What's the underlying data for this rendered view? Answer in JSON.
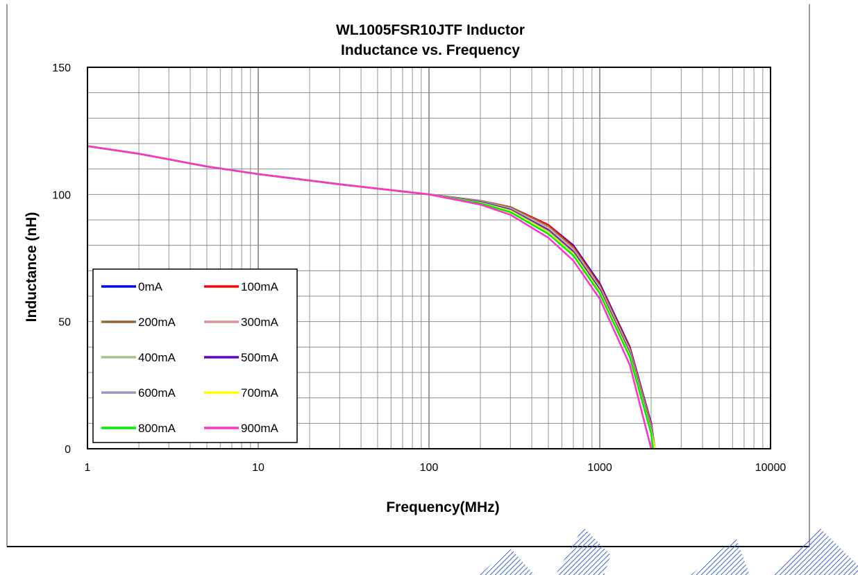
{
  "chart_data": {
    "type": "line",
    "title": "WL1005FSR10JTF Inductor",
    "subtitle": "Inductance vs. Frequency",
    "xlabel": "Frequency(MHz)",
    "ylabel": "Inductance (nH)",
    "xscale": "log",
    "xlim": [
      1,
      10000
    ],
    "ylim": [
      0,
      150
    ],
    "x_ticks": [
      "1",
      "10",
      "100",
      "1000",
      "10000"
    ],
    "y_ticks": [
      "0",
      "50",
      "100",
      "150"
    ],
    "grid": true,
    "legend_position": "bottom-left",
    "series": [
      {
        "name": "0mA",
        "color": "#0000ff",
        "x": [
          1,
          2,
          5,
          10,
          30,
          100,
          200,
          300,
          500,
          700,
          1000,
          1500,
          2000,
          2100
        ],
        "y": [
          119,
          116,
          111,
          108,
          104,
          100,
          97.5,
          95,
          88,
          80,
          65,
          40,
          10,
          0
        ]
      },
      {
        "name": "100mA",
        "color": "#ff0000",
        "x": [
          1,
          2,
          5,
          10,
          30,
          100,
          200,
          300,
          500,
          700,
          1000,
          1500,
          2000,
          2100
        ],
        "y": [
          119,
          116,
          111,
          108,
          104,
          100,
          97.5,
          95,
          88,
          79.5,
          64.5,
          39.5,
          9.5,
          0
        ]
      },
      {
        "name": "200mA",
        "color": "#996633",
        "x": [
          1,
          2,
          5,
          10,
          30,
          100,
          200,
          300,
          500,
          700,
          1000,
          1500,
          2000,
          2100
        ],
        "y": [
          119,
          116,
          111,
          108,
          104,
          100,
          97.5,
          95,
          87.5,
          79,
          64,
          39,
          9,
          0
        ]
      },
      {
        "name": "300mA",
        "color": "#d99594",
        "x": [
          1,
          2,
          5,
          10,
          30,
          100,
          200,
          300,
          500,
          700,
          1000,
          1500,
          2000,
          2100
        ],
        "y": [
          119,
          116,
          111,
          108,
          104,
          100,
          97.3,
          94.5,
          87,
          78.5,
          63.5,
          38.5,
          8.5,
          0
        ]
      },
      {
        "name": "400mA",
        "color": "#a6c38c",
        "x": [
          1,
          2,
          5,
          10,
          30,
          100,
          200,
          300,
          500,
          700,
          1000,
          1500,
          2000,
          2100
        ],
        "y": [
          119,
          116,
          111,
          108,
          104,
          100,
          97.2,
          94.3,
          86.5,
          78,
          63,
          38,
          8,
          0
        ]
      },
      {
        "name": "500mA",
        "color": "#6600cc",
        "x": [
          1,
          2,
          5,
          10,
          30,
          100,
          200,
          300,
          500,
          700,
          1000,
          1500,
          2000,
          2100
        ],
        "y": [
          119,
          116,
          111,
          108,
          104,
          100,
          97,
          94,
          86,
          77.5,
          62.5,
          37.5,
          7.5,
          0
        ]
      },
      {
        "name": "600mA",
        "color": "#9999bb",
        "x": [
          1,
          2,
          5,
          10,
          30,
          100,
          200,
          300,
          500,
          700,
          1000,
          1500,
          2000,
          2100
        ],
        "y": [
          119,
          116,
          111,
          108,
          104,
          100,
          96.8,
          93.7,
          85.5,
          77,
          62,
          37,
          7,
          0
        ]
      },
      {
        "name": "700mA",
        "color": "#ffff00",
        "x": [
          1,
          2,
          5,
          10,
          30,
          100,
          200,
          300,
          500,
          700,
          1000,
          1500,
          2000,
          2100
        ],
        "y": [
          119,
          116,
          111,
          108,
          104,
          100,
          96.6,
          93.4,
          85,
          76.5,
          61.5,
          36.5,
          6.5,
          0
        ]
      },
      {
        "name": "800mA",
        "color": "#00ee00",
        "x": [
          1,
          2,
          5,
          10,
          30,
          100,
          200,
          300,
          500,
          700,
          1000,
          1500,
          2000,
          2050
        ],
        "y": [
          119,
          116,
          111,
          108,
          104,
          100,
          96.5,
          93,
          84.5,
          76,
          61,
          36,
          6,
          0
        ]
      },
      {
        "name": "900mA",
        "color": "#ff33cc",
        "x": [
          1,
          2,
          5,
          10,
          30,
          100,
          200,
          300,
          500,
          700,
          1000,
          1500,
          1950,
          2000
        ],
        "y": [
          119,
          116,
          111,
          108,
          104,
          100,
          96,
          92,
          83,
          74,
          59,
          33,
          3,
          0
        ]
      }
    ]
  }
}
